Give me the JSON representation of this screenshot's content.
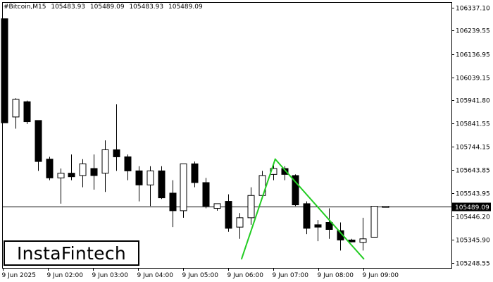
{
  "header": {
    "symbol": "#Bitcoin,M15",
    "open": "105483.93",
    "high": "105489.09",
    "low": "105483.93",
    "close": "105489.09"
  },
  "logo_text": "InstaFintech",
  "colors": {
    "background": "#ffffff",
    "bull_body": "#ffffff",
    "bear_body": "#000000",
    "wick": "#000000",
    "pattern_line": "#22cc22",
    "current_price_label_bg": "#000000",
    "current_price_label_text": "#ffffff"
  },
  "chart_data": {
    "type": "candlestick",
    "y_ticks": [
      "106337.10",
      "106239.55",
      "106136.95",
      "106039.15",
      "105941.80",
      "105841.55",
      "105744.15",
      "105643.85",
      "105543.95",
      "105446.20",
      "105345.90",
      "105248.55"
    ],
    "x_ticks": [
      "9 Jun 2025",
      "9 Jun 02:00",
      "9 Jun 03:00",
      "9 Jun 04:00",
      "9 Jun 05:00",
      "9 Jun 06:00",
      "9 Jun 07:00",
      "9 Jun 08:00",
      "9 Jun 09:00"
    ],
    "current_price": 105489.09,
    "current_price_label": "105489.09",
    "ylim": [
      105226,
      106360
    ],
    "candles": [
      {
        "o": 106289,
        "h": 106289,
        "l": 105845,
        "c": 105845
      },
      {
        "o": 105870,
        "h": 105950,
        "l": 105820,
        "c": 105945
      },
      {
        "o": 105935,
        "h": 105940,
        "l": 105840,
        "c": 105850
      },
      {
        "o": 105855,
        "h": 105855,
        "l": 105640,
        "c": 105680
      },
      {
        "o": 105690,
        "h": 105700,
        "l": 105600,
        "c": 105610
      },
      {
        "o": 105610,
        "h": 105650,
        "l": 105500,
        "c": 105630
      },
      {
        "o": 105630,
        "h": 105710,
        "l": 105600,
        "c": 105615
      },
      {
        "o": 105620,
        "h": 105690,
        "l": 105570,
        "c": 105670
      },
      {
        "o": 105650,
        "h": 105710,
        "l": 105560,
        "c": 105620
      },
      {
        "o": 105630,
        "h": 105770,
        "l": 105550,
        "c": 105730
      },
      {
        "o": 105730,
        "h": 105924,
        "l": 105640,
        "c": 105700
      },
      {
        "o": 105700,
        "h": 105710,
        "l": 105600,
        "c": 105640
      },
      {
        "o": 105640,
        "h": 105660,
        "l": 105510,
        "c": 105580
      },
      {
        "o": 105580,
        "h": 105660,
        "l": 105490,
        "c": 105640
      },
      {
        "o": 105640,
        "h": 105660,
        "l": 105520,
        "c": 105525
      },
      {
        "o": 105545,
        "h": 105600,
        "l": 105400,
        "c": 105470
      },
      {
        "o": 105470,
        "h": 105670,
        "l": 105440,
        "c": 105670
      },
      {
        "o": 105670,
        "h": 105680,
        "l": 105570,
        "c": 105590
      },
      {
        "o": 105590,
        "h": 105610,
        "l": 105480,
        "c": 105490
      },
      {
        "o": 105480,
        "h": 105500,
        "l": 105470,
        "c": 105500
      },
      {
        "o": 105510,
        "h": 105540,
        "l": 105380,
        "c": 105395
      },
      {
        "o": 105400,
        "h": 105460,
        "l": 105350,
        "c": 105440
      },
      {
        "o": 105440,
        "h": 105570,
        "l": 105410,
        "c": 105535
      },
      {
        "o": 105535,
        "h": 105640,
        "l": 105530,
        "c": 105620
      },
      {
        "o": 105625,
        "h": 105675,
        "l": 105600,
        "c": 105650
      },
      {
        "o": 105650,
        "h": 105660,
        "l": 105600,
        "c": 105625
      },
      {
        "o": 105620,
        "h": 105625,
        "l": 105490,
        "c": 105495
      },
      {
        "o": 105500,
        "h": 105510,
        "l": 105370,
        "c": 105395
      },
      {
        "o": 105410,
        "h": 105430,
        "l": 105340,
        "c": 105400
      },
      {
        "o": 105420,
        "h": 105480,
        "l": 105350,
        "c": 105390
      },
      {
        "o": 105385,
        "h": 105420,
        "l": 105300,
        "c": 105345
      },
      {
        "o": 105345,
        "h": 105350,
        "l": 105335,
        "c": 105337
      },
      {
        "o": 105335,
        "h": 105440,
        "l": 105300,
        "c": 105350
      },
      {
        "o": 105357,
        "h": 105490,
        "l": 105357,
        "c": 105489
      },
      {
        "o": 105484,
        "h": 105489,
        "l": 105484,
        "c": 105489
      }
    ],
    "pattern_lines": [
      {
        "from_index": 21.2,
        "from_price": 105265,
        "to_index": 24.2,
        "to_price": 105690
      },
      {
        "from_index": 24.2,
        "from_price": 105690,
        "to_index": 32.1,
        "to_price": 105265
      }
    ]
  }
}
